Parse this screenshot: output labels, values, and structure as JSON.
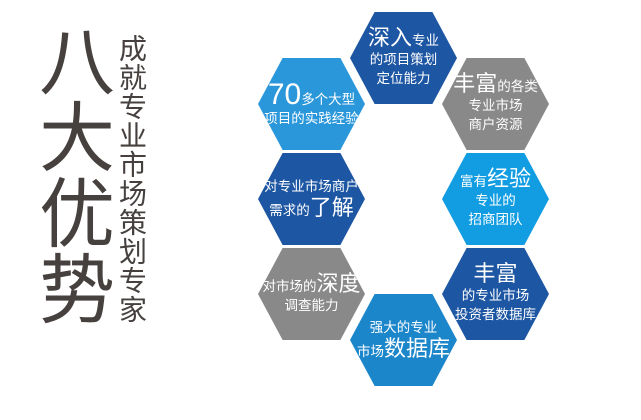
{
  "page": {
    "background": "#ffffff"
  },
  "sidebar": {
    "title": "八大优势",
    "subtitle": "成就专业市场策划专家",
    "text_color": "#46413f"
  },
  "colors": {
    "dark_blue": "#1d56a3",
    "gray": "#898989",
    "bright_blue": "#129de2",
    "sky_blue": "#2b97db",
    "mid_blue": "#1c86cb",
    "text_white": "#ffffff"
  },
  "hexagons": [
    {
      "id": "deep-planning",
      "color": "dark_blue",
      "position": "top",
      "lines": [
        [
          {
            "text": "深入",
            "size": "lg"
          },
          {
            "text": "专业",
            "size": "sm"
          }
        ],
        [
          {
            "text": "的项目策划",
            "size": "sm"
          }
        ],
        [
          {
            "text": "定位能力",
            "size": "sm"
          }
        ]
      ]
    },
    {
      "id": "merchant-resources",
      "color": "gray",
      "position": "top-right",
      "lines": [
        [
          {
            "text": "丰富",
            "size": "lg"
          },
          {
            "text": "的各类",
            "size": "sm"
          }
        ],
        [
          {
            "text": "专业市场",
            "size": "sm"
          }
        ],
        [
          {
            "text": "商户资源",
            "size": "sm"
          }
        ]
      ]
    },
    {
      "id": "experienced-team",
      "color": "bright_blue",
      "position": "right",
      "lines": [
        [
          {
            "text": "富有",
            "size": "sm"
          },
          {
            "text": "经验",
            "size": "lg"
          }
        ],
        [
          {
            "text": "专业的",
            "size": "sm"
          }
        ],
        [
          {
            "text": "招商团队",
            "size": "sm"
          }
        ]
      ]
    },
    {
      "id": "investor-database",
      "color": "dark_blue",
      "position": "bottom-right",
      "lines": [
        [
          {
            "text": "丰富",
            "size": "lg"
          }
        ],
        [
          {
            "text": "的专业市场",
            "size": "sm"
          }
        ],
        [
          {
            "text": "投资者数据库",
            "size": "sm"
          }
        ]
      ]
    },
    {
      "id": "market-database",
      "color": "mid_blue",
      "position": "bottom",
      "lines": [
        [
          {
            "text": "强大的专业",
            "size": "sm"
          }
        ],
        [
          {
            "text": "市场",
            "size": "sm"
          },
          {
            "text": "数据库",
            "size": "lg"
          }
        ]
      ]
    },
    {
      "id": "market-research",
      "color": "gray",
      "position": "bottom-left",
      "lines": [
        [
          {
            "text": "对市场的",
            "size": "sm"
          },
          {
            "text": "深度",
            "size": "lg"
          }
        ],
        [
          {
            "text": "调查能力",
            "size": "sm"
          }
        ]
      ]
    },
    {
      "id": "merchant-needs",
      "color": "dark_blue",
      "position": "left",
      "lines": [
        [
          {
            "text": "对专业市场商户",
            "size": "sm"
          }
        ],
        [
          {
            "text": "需求的",
            "size": "sm"
          },
          {
            "text": "了解",
            "size": "lg"
          }
        ]
      ]
    },
    {
      "id": "project-experience",
      "color": "sky_blue",
      "position": "top-left",
      "lines": [
        [
          {
            "text": "70",
            "size": "xl"
          },
          {
            "text": "多个大型",
            "size": "sm"
          }
        ],
        [
          {
            "text": "项目的实践经验",
            "size": "sm"
          }
        ]
      ]
    }
  ]
}
